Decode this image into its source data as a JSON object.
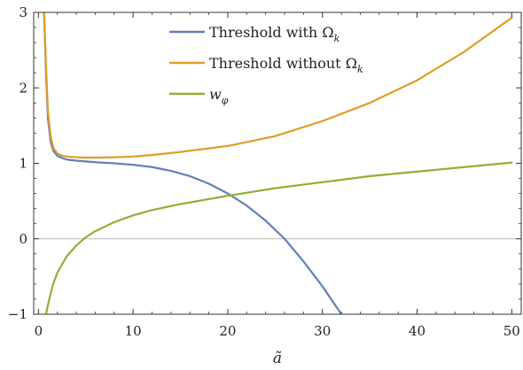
{
  "chart_data": {
    "type": "line",
    "title": "",
    "xlabel": "ã",
    "ylabel": "",
    "xlim": [
      -0.5,
      51
    ],
    "ylim": [
      -1,
      3
    ],
    "grid": false,
    "legend_position": "top-center",
    "x_ticks": [
      0,
      10,
      20,
      30,
      40,
      50
    ],
    "x_tick_labels": [
      "0",
      "10",
      "20",
      "30",
      "40",
      "50"
    ],
    "y_ticks": [
      -1,
      0,
      1,
      2,
      3
    ],
    "y_tick_labels": [
      "−1",
      "0",
      "1",
      "2",
      "3"
    ],
    "reference_line_y": 0,
    "series": [
      {
        "name": "Threshold with Ω",
        "name_subscript": "k",
        "color": "#5e81b5",
        "x": [
          0.6,
          0.8,
          1.0,
          1.3,
          1.6,
          2.0,
          2.5,
          3,
          4,
          5,
          6,
          8,
          10,
          12,
          14,
          16,
          18,
          20,
          22,
          24,
          26,
          28,
          30,
          32
        ],
        "y": [
          3.0,
          2.2,
          1.6,
          1.28,
          1.16,
          1.1,
          1.07,
          1.05,
          1.035,
          1.025,
          1.015,
          1.0,
          0.98,
          0.95,
          0.9,
          0.83,
          0.73,
          0.6,
          0.44,
          0.24,
          0.0,
          -0.3,
          -0.63,
          -1.0
        ]
      },
      {
        "name": "Threshold without Ω",
        "name_subscript": "k",
        "color": "#e19c24",
        "x": [
          0.6,
          0.8,
          1.0,
          1.3,
          1.6,
          2.0,
          2.5,
          3,
          4,
          5,
          6,
          8,
          10,
          12,
          15,
          20,
          25,
          30,
          35,
          40,
          45,
          50
        ],
        "y": [
          3.0,
          2.3,
          1.7,
          1.35,
          1.2,
          1.13,
          1.1,
          1.09,
          1.08,
          1.075,
          1.075,
          1.08,
          1.09,
          1.11,
          1.15,
          1.23,
          1.36,
          1.56,
          1.8,
          2.1,
          2.48,
          2.93
        ]
      },
      {
        "name": "w",
        "name_subscript": "φ",
        "color": "#8fb032",
        "x": [
          0.8,
          1.0,
          1.5,
          2,
          3,
          4,
          5,
          6,
          8,
          10,
          12,
          15,
          20,
          25,
          30,
          35,
          40,
          45,
          50
        ],
        "y": [
          -1.0,
          -0.88,
          -0.62,
          -0.45,
          -0.23,
          -0.09,
          0.02,
          0.1,
          0.22,
          0.31,
          0.38,
          0.46,
          0.57,
          0.67,
          0.75,
          0.83,
          0.89,
          0.95,
          1.01
        ]
      }
    ]
  }
}
